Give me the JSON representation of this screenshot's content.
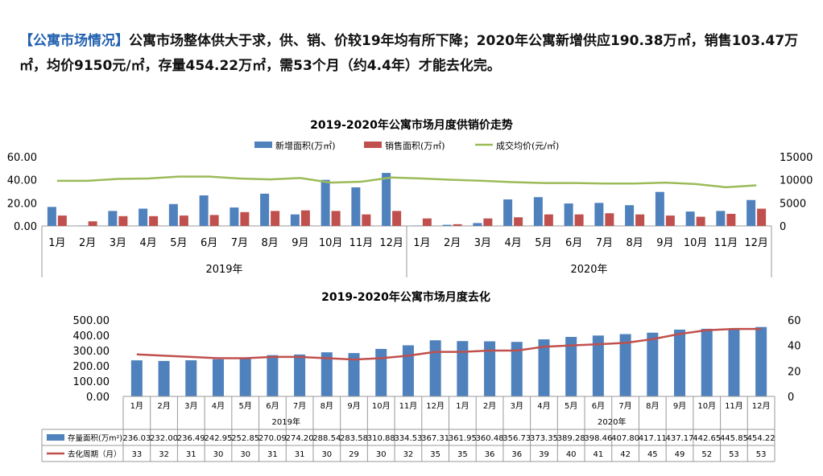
{
  "headline": {
    "tag": "【公寓市场情况】",
    "text": "公寓市场整体供大于求，供、销、价较19年均有所下降；2020年公寓新增供应190.38万㎡，销售103.47万㎡，均价9150元/㎡，存量454.22万㎡，需53个月（约4.4年）才能去化完。"
  },
  "chart_data": [
    {
      "type": "bar",
      "title": "2019-2020年公寓市场月度供销价走势",
      "categories": [
        "1月",
        "2月",
        "3月",
        "4月",
        "5月",
        "6月",
        "7月",
        "8月",
        "9月",
        "10月",
        "11月",
        "12月",
        "1月",
        "2月",
        "3月",
        "4月",
        "5月",
        "6月",
        "7月",
        "8月",
        "9月",
        "10月",
        "11月",
        "12月"
      ],
      "year_groups": [
        {
          "label": "2019年",
          "count": 12
        },
        {
          "label": "2020年",
          "count": 12
        }
      ],
      "series": [
        {
          "name": "新增面积(万㎡)",
          "type": "bar",
          "axis": "left",
          "color": "#4f81bd",
          "values": [
            16.5,
            0.3,
            13,
            15,
            19,
            26.5,
            16,
            28,
            10,
            40,
            33.5,
            46,
            0.3,
            1,
            2.5,
            23,
            25,
            19.5,
            20,
            18,
            29.5,
            12.5,
            13,
            22.5
          ]
        },
        {
          "name": "销售面积(万㎡)",
          "type": "bar",
          "axis": "left",
          "color": "#c0504d",
          "values": [
            9,
            4,
            8.5,
            8.5,
            9,
            9.5,
            12,
            13,
            13.5,
            13,
            10,
            13,
            6.5,
            1.5,
            6.5,
            7.5,
            10,
            10,
            11,
            10,
            9,
            8,
            10.5,
            15
          ]
        },
        {
          "name": "成交均价(元/㎡)",
          "type": "line",
          "axis": "right",
          "color": "#9bbb59",
          "values": [
            9800,
            9800,
            10200,
            10300,
            10700,
            10700,
            10300,
            10100,
            10400,
            9400,
            9600,
            10500,
            10300,
            10000,
            9800,
            9500,
            9300,
            9300,
            9200,
            9200,
            9400,
            9100,
            8400,
            8800
          ]
        }
      ],
      "ylim_left": [
        0,
        60
      ],
      "yticks_left": [
        "0.00",
        "20.00",
        "40.00",
        "60.00"
      ],
      "ylim_right": [
        0,
        15000
      ],
      "yticks_right": [
        "0",
        "5000",
        "10000",
        "15000"
      ],
      "legend": "top"
    },
    {
      "type": "bar",
      "title": "2019-2020年公寓市场月度去化",
      "categories": [
        "1月",
        "2月",
        "3月",
        "4月",
        "5月",
        "6月",
        "7月",
        "8月",
        "9月",
        "10月",
        "11月",
        "12月",
        "1月",
        "2月",
        "3月",
        "4月",
        "5月",
        "6月",
        "7月",
        "8月",
        "9月",
        "10月",
        "11月",
        "12月"
      ],
      "year_groups": [
        {
          "label": "2019年",
          "count": 12
        },
        {
          "label": "2020年",
          "count": 12
        }
      ],
      "series": [
        {
          "name": "存量面积(万m²)",
          "type": "bar",
          "axis": "left",
          "color": "#4f81bd",
          "values": [
            236.03,
            232.0,
            236.49,
            242.95,
            252.85,
            270.09,
            274.2,
            288.54,
            283.58,
            310.88,
            334.53,
            367.31,
            361.95,
            360.48,
            356.73,
            373.35,
            389.28,
            398.46,
            407.8,
            417.11,
            437.17,
            442.65,
            445.85,
            454.22
          ],
          "labels": [
            "236.03",
            "232.00",
            "236.49",
            "242.95",
            "252.85",
            "270.09",
            "274.20",
            "288.54",
            "283.58",
            "310.88",
            "334.53",
            "367.31",
            "361.95",
            "360.48",
            "356.73",
            "373.35",
            "389.28",
            "398.46",
            "407.80",
            "417.11",
            "437.17",
            "442.65",
            "445.85",
            "454.22"
          ]
        },
        {
          "name": "去化周期（月）",
          "type": "line",
          "axis": "right",
          "color": "#c0504d",
          "values": [
            33,
            32,
            31,
            30,
            30,
            31,
            31,
            30,
            29,
            30,
            32,
            35,
            35,
            36,
            36,
            39,
            40,
            41,
            42,
            45,
            49,
            52,
            53,
            53
          ]
        }
      ],
      "ylim_left": [
        0,
        500
      ],
      "yticks_left": [
        "0.00",
        "100.00",
        "200.00",
        "300.00",
        "400.00",
        "500.00"
      ],
      "ylim_right": [
        0,
        60
      ],
      "yticks_right": [
        "0",
        "20",
        "40",
        "60"
      ],
      "legend": "table"
    }
  ]
}
